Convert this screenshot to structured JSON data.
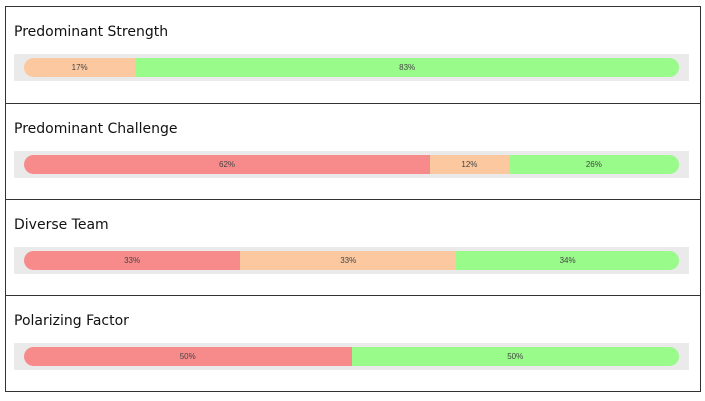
{
  "panels": [
    {
      "title": "Predominant Strength",
      "values": [
        17,
        83
      ],
      "value_labels": [
        "17%",
        "83%"
      ],
      "colors": [
        "#fbc8a0",
        "#98fb8a"
      ]
    },
    {
      "title": "Predominant Challenge",
      "values": [
        62,
        12,
        26
      ],
      "value_labels": [
        "62%",
        "12%",
        "26%"
      ],
      "colors": [
        "#f78b8b",
        "#fbc8a0",
        "#98fb8a"
      ]
    },
    {
      "title": "Diverse Team",
      "values": [
        33,
        33,
        34
      ],
      "value_labels": [
        "33%",
        "33%",
        "34%"
      ],
      "colors": [
        "#f78b8b",
        "#fbc8a0",
        "#98fb8a"
      ]
    },
    {
      "title": "Polarizing Factor",
      "values": [
        50,
        50
      ],
      "value_labels": [
        "50%",
        "50%"
      ],
      "colors": [
        "#f78b8b",
        "#98fb8a"
      ]
    }
  ]
}
